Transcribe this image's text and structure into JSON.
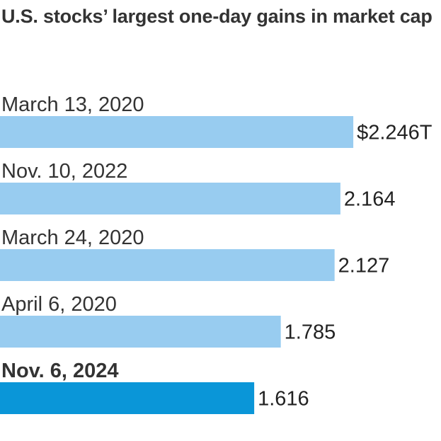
{
  "chart_data": {
    "type": "bar",
    "orientation": "horizontal",
    "title": "U.S. stocks’ largest one-day gains in market cap",
    "categories": [
      "March 13, 2020",
      "Nov. 10, 2022",
      "March 24, 2020",
      "April 6, 2020",
      "Nov. 6, 2024"
    ],
    "values": [
      2.246,
      2.164,
      2.127,
      1.785,
      1.616
    ],
    "value_labels": [
      "$2.246T",
      "2.164",
      "2.127",
      "1.785",
      "1.616"
    ],
    "highlight_index": 4,
    "xlim": [
      0,
      2.25
    ],
    "grid": false,
    "legend": "none",
    "colors": {
      "bar": "#98ccf0",
      "highlight_bar": "#0a96d8"
    }
  }
}
